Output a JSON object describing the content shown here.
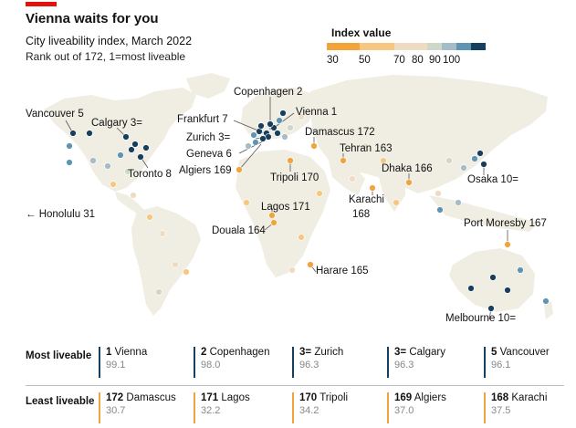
{
  "header": {
    "title": "Vienna waits for you",
    "subtitle": "City liveability index, March 2022",
    "note": "Rank out of 172, 1=most liveable"
  },
  "legend": {
    "title": "Index value",
    "ticks": [
      "30",
      "50",
      "70",
      "80",
      "90",
      "100"
    ],
    "colors": [
      "#f2a33a",
      "#f6c77f",
      "#efdcc0",
      "#cfd7c9",
      "#a4bcc8",
      "#5f94b4",
      "#163e5e"
    ]
  },
  "map": {
    "land_color": "#f0ede3",
    "labels": [
      {
        "text": "Copenhagen 2"
      },
      {
        "text": "Vienna 1"
      },
      {
        "text": "Vancouver 5"
      },
      {
        "text": "Calgary 3="
      },
      {
        "text": "Frankfurt 7"
      },
      {
        "text": "Zurich 3="
      },
      {
        "text": "Damascus 172"
      },
      {
        "text": "Tehran 163"
      },
      {
        "text": "Geneva 6"
      },
      {
        "text": "Algiers 169"
      },
      {
        "text": "Tripoli 170"
      },
      {
        "text": "Dhaka 166"
      },
      {
        "text": "Osaka 10="
      },
      {
        "text": "Toronto 8"
      },
      {
        "text": "Karachi"
      },
      {
        "text": "168"
      },
      {
        "text": "← Honolulu 31"
      },
      {
        "text": "Lagos 171"
      },
      {
        "text": "Douala 164"
      },
      {
        "text": "Port Moresby 167"
      },
      {
        "text": "Harare 165"
      },
      {
        "text": "Melbourne 10="
      }
    ]
  },
  "table": {
    "most": {
      "label": "Most liveable",
      "cells": [
        {
          "rank": "1",
          "city": "Vienna",
          "value": "99.1",
          "color": "#163e5e"
        },
        {
          "rank": "2",
          "city": "Copenhagen",
          "value": "98.0",
          "color": "#163e5e"
        },
        {
          "rank": "3=",
          "city": "Zurich",
          "value": "96.3",
          "color": "#163e5e"
        },
        {
          "rank": "3=",
          "city": "Calgary",
          "value": "96.3",
          "color": "#163e5e"
        },
        {
          "rank": "5",
          "city": "Vancouver",
          "value": "96.1",
          "color": "#163e5e"
        }
      ]
    },
    "least": {
      "label": "Least liveable",
      "cells": [
        {
          "rank": "172",
          "city": "Damascus",
          "value": "30.7",
          "color": "#f2a33a"
        },
        {
          "rank": "171",
          "city": "Lagos",
          "value": "32.2",
          "color": "#f2a33a"
        },
        {
          "rank": "170",
          "city": "Tripoli",
          "value": "34.2",
          "color": "#f2a33a"
        },
        {
          "rank": "169",
          "city": "Algiers",
          "value": "37.0",
          "color": "#f2a33a"
        },
        {
          "rank": "168",
          "city": "Karachi",
          "value": "37.5",
          "color": "#f2a33a"
        }
      ]
    }
  }
}
